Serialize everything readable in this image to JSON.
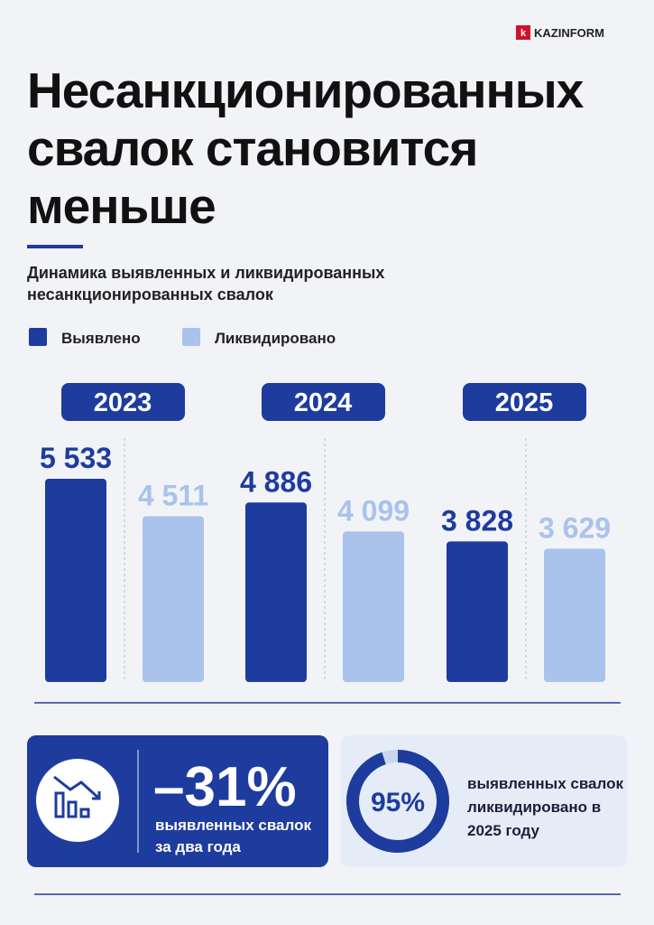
{
  "brand": "KAZINFORM",
  "title": "Несанкционированных свалок становится меньше",
  "chart_data": {
    "type": "bar",
    "subtitle": "Динамика выявленных и ликвидированных несанкционированных свалок",
    "categories": [
      "2023",
      "2024",
      "2025"
    ],
    "series": [
      {
        "name": "Выявлено",
        "color": "#1e3c9e",
        "values": [
          5533,
          4886,
          3828
        ],
        "value_labels": [
          "5 533",
          "4 886",
          "3 828"
        ]
      },
      {
        "name": "Ликвидировано",
        "color": "#a9c3ec",
        "values": [
          4511,
          4099,
          3629
        ],
        "value_labels": [
          "4 511",
          "4 099",
          "3 629"
        ]
      }
    ]
  },
  "stats": [
    {
      "value": -31,
      "value_label": "–31%",
      "text": "выявленных свалок за два года"
    },
    {
      "value": 95,
      "value_label": "95%",
      "text": "выявленных свалок ликвидировано в 2025 году"
    }
  ]
}
